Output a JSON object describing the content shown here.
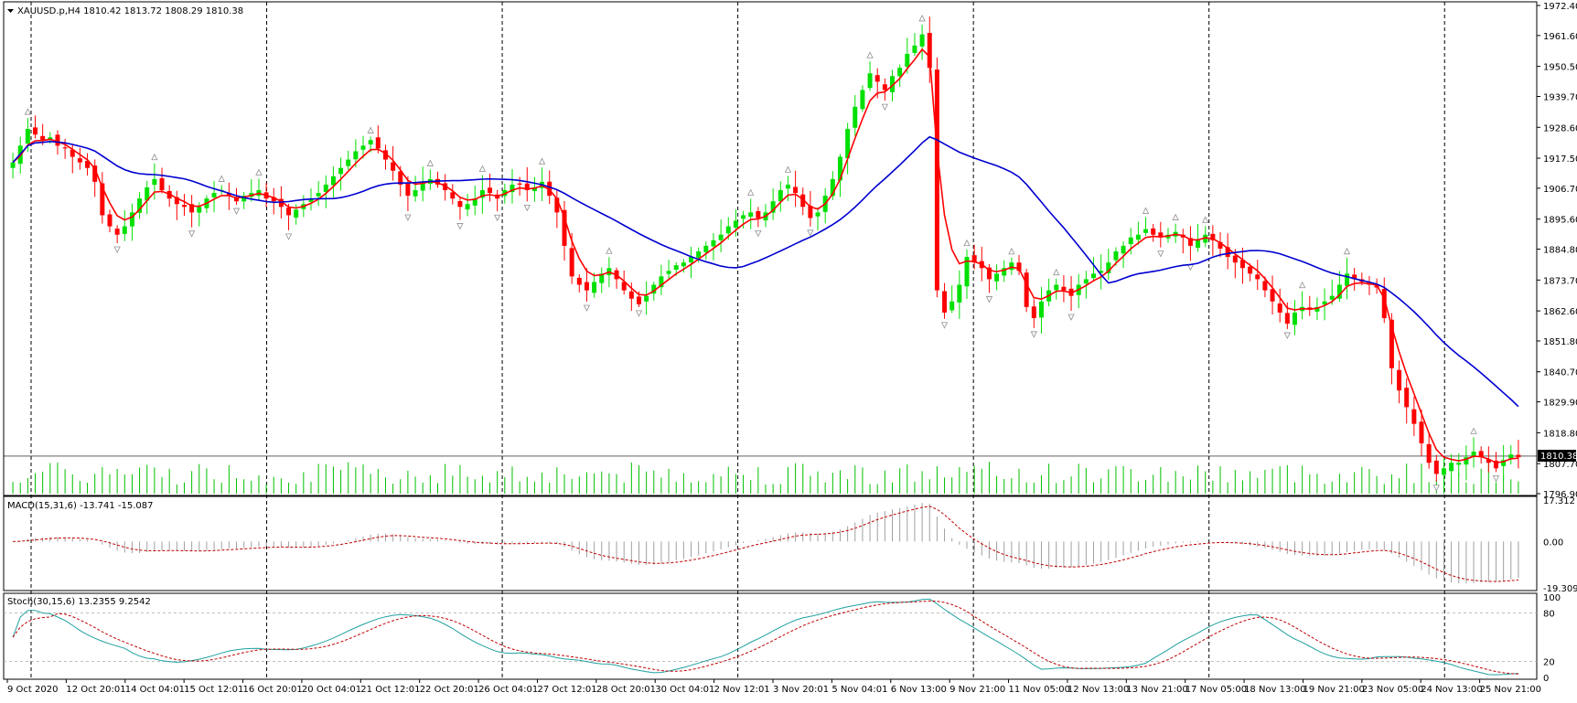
{
  "colors": {
    "background": "#ffffff",
    "frame": "#000000",
    "bull": "#00e000",
    "bear": "#ff0000",
    "ma_fast": "#ff0000",
    "ma_slow": "#0000d0",
    "volume": "#00c000",
    "fractal": "#909090",
    "macd_signal": "#c00000",
    "macd_hist": "#a0a0a0",
    "stoch_main": "#20a0a0",
    "stoch_signal": "#c00000",
    "text": "#000000",
    "price_tag_bg": "#000000",
    "price_tag_fg": "#ffffff"
  },
  "header": {
    "title": "XAUUSD.p,H4  1810.42 1813.72 1808.29 1810.38"
  },
  "macd": {
    "title": "MACD(15,31,6) -13.741 -15.087",
    "ticks": [
      "17.312",
      "0.00",
      "-19.309"
    ]
  },
  "stoch": {
    "title": "Stoch(30,15,6) 13.2355 9.2542",
    "ticks": [
      "100",
      "80",
      "20",
      "0"
    ]
  },
  "price_tag": "1810.38",
  "chart_data": {
    "type": "candlestick",
    "symbol": "XAUUSD.p",
    "timeframe": "H4",
    "last_ohlc": {
      "open": 1810.42,
      "high": 1813.72,
      "low": 1808.29,
      "close": 1810.38
    },
    "ylim": [
      1796.9,
      1972.4
    ],
    "y_ticks": [
      "1972.40",
      "1961.60",
      "1950.50",
      "1939.70",
      "1928.60",
      "1917.50",
      "1906.70",
      "1895.60",
      "1884.80",
      "1873.70",
      "1862.60",
      "1851.80",
      "1840.70",
      "1829.90",
      "1818.80",
      "1807.70",
      "1796.90"
    ],
    "x_tick_labels": [
      "9 Oct 2020",
      "12 Oct 20:01",
      "14 Oct 04:01",
      "15 Oct 12:01",
      "16 Oct 20:01",
      "20 Oct 04:01",
      "21 Oct 12:01",
      "22 Oct 20:01",
      "26 Oct 04:01",
      "27 Oct 12:01",
      "28 Oct 20:01",
      "30 Oct 04:01",
      "2 Nov 12:01",
      "3 Nov 20:01",
      "5 Nov 04:01",
      "6 Nov 13:00",
      "9 Nov 21:00",
      "11 Nov 05:00",
      "12 Nov 13:00",
      "13 Nov 21:00",
      "17 Nov 05:00",
      "18 Nov 13:00",
      "19 Nov 21:00",
      "23 Nov 05:00",
      "24 Nov 13:00",
      "25 Nov 21:00"
    ],
    "close_series": [
      1916,
      1922,
      1928,
      1926,
      1924,
      1925,
      1922,
      1921,
      1918,
      1916,
      1914,
      1909,
      1897,
      1893,
      1890,
      1893,
      1898,
      1903,
      1907,
      1910,
      1906,
      1903,
      1901,
      1900,
      1898,
      1900,
      1903,
      1905,
      1906,
      1904,
      1902,
      1904,
      1905,
      1906,
      1903,
      1902,
      1900,
      1897,
      1899,
      1901,
      1903,
      1905,
      1908,
      1911,
      1914,
      1917,
      1920,
      1922,
      1924,
      1921,
      1917,
      1913,
      1908,
      1904,
      1906,
      1909,
      1910,
      1908,
      1906,
      1903,
      1900,
      1901,
      1903,
      1906,
      1905,
      1903,
      1906,
      1908,
      1908,
      1906,
      1907,
      1909,
      1904,
      1898,
      1886,
      1875,
      1872,
      1870,
      1873,
      1876,
      1878,
      1874,
      1870,
      1867,
      1865,
      1868,
      1872,
      1875,
      1877,
      1879,
      1880,
      1882,
      1884,
      1886,
      1888,
      1890,
      1893,
      1895,
      1897,
      1898,
      1896,
      1898,
      1902,
      1906,
      1908,
      1905,
      1900,
      1896,
      1898,
      1904,
      1910,
      1918,
      1928,
      1936,
      1942,
      1948,
      1945,
      1942,
      1947,
      1950,
      1955,
      1958,
      1962,
      1950,
      1870,
      1862,
      1866,
      1872,
      1882,
      1880,
      1878,
      1874,
      1876,
      1878,
      1880,
      1877,
      1864,
      1860,
      1866,
      1870,
      1872,
      1870,
      1868,
      1872,
      1874,
      1876,
      1877,
      1880,
      1884,
      1886,
      1889,
      1890,
      1892,
      1890,
      1889,
      1890,
      1891,
      1889,
      1886,
      1888,
      1890,
      1888,
      1885,
      1882,
      1880,
      1878,
      1876,
      1874,
      1870,
      1866,
      1862,
      1858,
      1862,
      1864,
      1863,
      1864,
      1866,
      1868,
      1872,
      1876,
      1874,
      1873,
      1872,
      1871,
      1860,
      1842,
      1834,
      1828,
      1822,
      1815,
      1808,
      1804,
      1806,
      1808,
      1808,
      1810,
      1812,
      1810,
      1808,
      1806,
      1809,
      1811,
      1810
    ],
    "ma_fast": {
      "period_label": "fast",
      "color": "#ff0000"
    },
    "ma_slow": {
      "period_label": "slow",
      "color": "#0000d0"
    },
    "macd_signal_range": [
      -19.309,
      17.312
    ],
    "stoch_range": [
      0,
      100
    ],
    "stoch_levels": [
      80,
      20
    ],
    "grid": "vertical-dashed"
  }
}
